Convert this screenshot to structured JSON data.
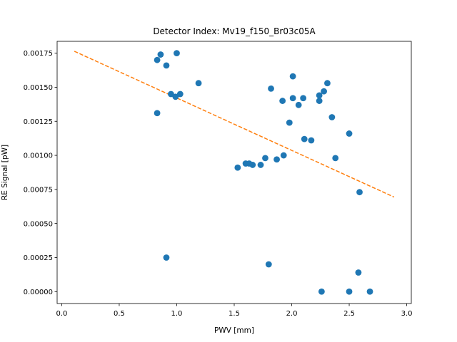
{
  "chart_data": {
    "type": "scatter",
    "title": "Detector Index: Mv19_f150_Br03c05A",
    "xlabel": "PWV [mm]",
    "ylabel": "RE Signal [pW]",
    "xlim": [
      -0.04,
      3.04
    ],
    "ylim": [
      -8.75e-05,
      0.001837
    ],
    "xticks": [
      0.0,
      0.5,
      1.0,
      1.5,
      2.0,
      2.5,
      3.0
    ],
    "xtick_labels": [
      "0.0",
      "0.5",
      "1.0",
      "1.5",
      "2.0",
      "2.5",
      "3.0"
    ],
    "yticks": [
      0.0,
      0.00025,
      0.0005,
      0.00075,
      0.001,
      0.00125,
      0.0015,
      0.00175
    ],
    "ytick_labels": [
      "0.00000",
      "0.00025",
      "0.00050",
      "0.00075",
      "0.00100",
      "0.00125",
      "0.00150",
      "0.00175"
    ],
    "series": [
      {
        "name": "data",
        "kind": "scatter",
        "color": "#1f77b4",
        "points": [
          [
            0.83,
            0.0017
          ],
          [
            0.86,
            0.00174
          ],
          [
            0.91,
            0.00166
          ],
          [
            1.0,
            0.00175
          ],
          [
            0.95,
            0.00145
          ],
          [
            0.99,
            0.00143
          ],
          [
            1.03,
            0.00145
          ],
          [
            0.83,
            0.00131
          ],
          [
            1.19,
            0.00153
          ],
          [
            0.91,
            0.00025
          ],
          [
            1.53,
            0.00091
          ],
          [
            1.6,
            0.00094
          ],
          [
            1.63,
            0.00094
          ],
          [
            1.66,
            0.00093
          ],
          [
            1.73,
            0.00093
          ],
          [
            1.77,
            0.00098
          ],
          [
            1.87,
            0.00097
          ],
          [
            1.93,
            0.001
          ],
          [
            1.82,
            0.00149
          ],
          [
            1.92,
            0.0014
          ],
          [
            2.01,
            0.00158
          ],
          [
            2.01,
            0.00142
          ],
          [
            2.06,
            0.00137
          ],
          [
            2.1,
            0.00142
          ],
          [
            1.98,
            0.00124
          ],
          [
            2.11,
            0.00112
          ],
          [
            2.17,
            0.00111
          ],
          [
            2.24,
            0.00144
          ],
          [
            2.24,
            0.0014
          ],
          [
            2.28,
            0.00147
          ],
          [
            2.31,
            0.00153
          ],
          [
            2.35,
            0.00128
          ],
          [
            2.38,
            0.00098
          ],
          [
            2.5,
            0.00116
          ],
          [
            2.59,
            0.00073
          ],
          [
            1.8,
            0.0002
          ],
          [
            2.26,
            0.0
          ],
          [
            2.5,
            0.0
          ],
          [
            2.58,
            0.00014
          ],
          [
            2.68,
            0.0
          ]
        ]
      },
      {
        "name": "fit",
        "kind": "line",
        "style": "dashed",
        "color": "#ff7f0e",
        "points": [
          [
            0.11,
            0.001764
          ],
          [
            2.89,
            0.000694
          ]
        ]
      }
    ]
  }
}
